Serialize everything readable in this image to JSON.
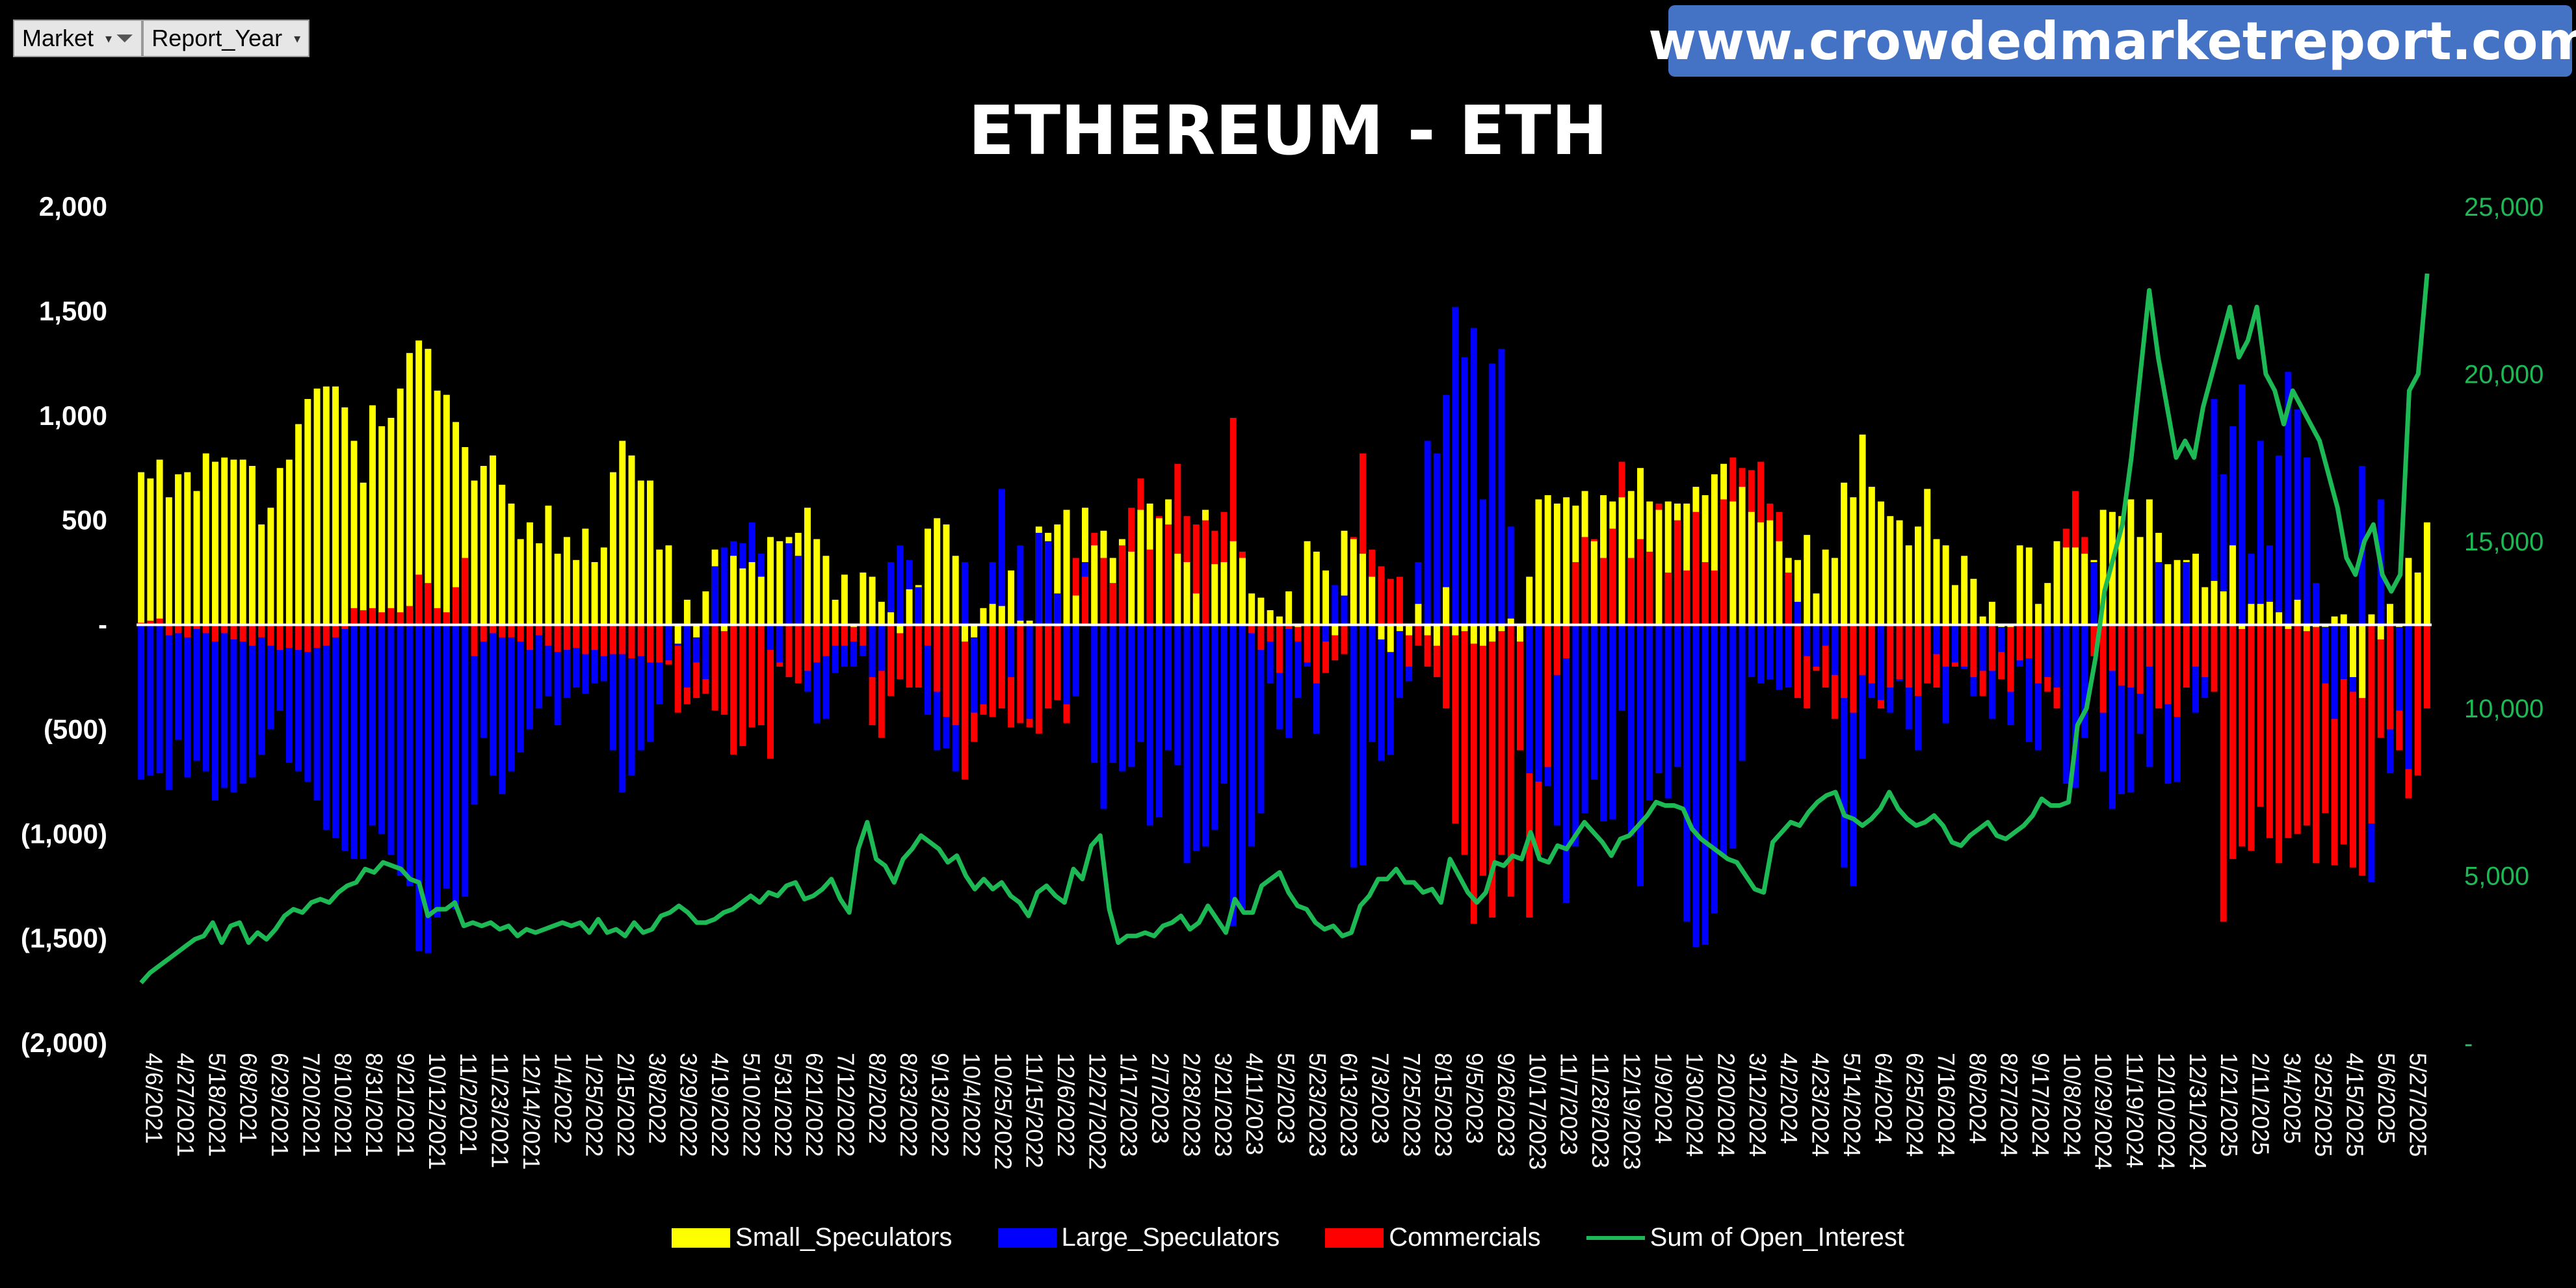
{
  "filters": [
    {
      "label": "Market",
      "icon": "funnel-icon"
    },
    {
      "label": "Report_Year"
    }
  ],
  "banner": "www.crowdedmarketreport.com",
  "colors": {
    "small": "#ffff00",
    "large": "#0000ff",
    "comm": "#ff0000",
    "oi": "#1db954"
  },
  "chart_data": {
    "type": "bar",
    "title": "ETHEREUM - ETH",
    "y_left_ticks": [
      "2,000",
      "1,500",
      "1,000",
      "500",
      "-",
      "(500)",
      "(1,000)",
      "(1,500)",
      "(2,000)"
    ],
    "ylim_left": [
      -2000,
      2000
    ],
    "y_right_ticks": [
      "25,000",
      "20,000",
      "15,000",
      "10,000",
      "5,000",
      "-"
    ],
    "ylim_right": [
      0,
      25000
    ],
    "x_tick_labels": [
      "4/6/2021",
      "4/27/2021",
      "5/18/2021",
      "6/8/2021",
      "6/29/2021",
      "7/20/2021",
      "8/10/2021",
      "8/31/2021",
      "9/21/2021",
      "10/12/2021",
      "11/2/2021",
      "11/23/2021",
      "12/14/2021",
      "1/4/2022",
      "1/25/2022",
      "2/15/2022",
      "3/8/2022",
      "3/29/2022",
      "4/19/2022",
      "5/10/2022",
      "5/31/2022",
      "6/21/2022",
      "7/12/2022",
      "8/2/2022",
      "8/23/2022",
      "9/13/2022",
      "10/4/2022",
      "10/25/2022",
      "11/15/2022",
      "12/6/2022",
      "12/27/2022",
      "1/17/2023",
      "2/7/2023",
      "2/28/2023",
      "3/21/2023",
      "4/11/2023",
      "5/2/2023",
      "5/23/2023",
      "6/13/2023",
      "7/3/2023",
      "7/25/2023",
      "8/15/2023",
      "9/5/2023",
      "9/26/2023",
      "10/17/2023",
      "11/7/2023",
      "11/28/2023",
      "12/19/2023",
      "1/9/2024",
      "1/30/2024",
      "2/20/2024",
      "3/12/2024",
      "4/2/2024",
      "4/23/2024",
      "5/14/2024",
      "6/4/2024",
      "6/25/2024",
      "7/16/2024",
      "8/6/2024",
      "8/27/2024",
      "9/17/2024",
      "10/8/2024",
      "10/29/2024",
      "11/19/2024",
      "12/10/2024",
      "12/31/2024",
      "1/21/2025",
      "2/11/2025",
      "3/4/2025",
      "3/25/2025",
      "4/15/2025",
      "5/6/2025",
      "5/27/2025"
    ],
    "series": [
      {
        "name": "Small_Speculators",
        "values": [
          730,
          700,
          790,
          610,
          720,
          730,
          640,
          820,
          780,
          800,
          790,
          790,
          760,
          480,
          560,
          750,
          790,
          960,
          1080,
          1130,
          1140,
          1140,
          1040,
          880,
          680,
          1050,
          950,
          990,
          1130,
          1300,
          1360,
          1320,
          1120,
          1100,
          970,
          850,
          690,
          760,
          810,
          670,
          580,
          410,
          490,
          390,
          570,
          340,
          420,
          310,
          460,
          300,
          370,
          730,
          880,
          810,
          690,
          690,
          360,
          380,
          -90,
          120,
          -60,
          160,
          360,
          -30,
          330,
          270,
          300,
          230,
          420,
          400,
          420,
          440,
          560,
          410,
          330,
          120,
          240,
          -10,
          250,
          230,
          110,
          60,
          -40,
          170,
          190,
          460,
          510,
          480,
          330,
          -80,
          -60,
          80,
          100,
          90,
          260,
          20,
          20,
          470,
          440,
          480,
          550,
          140,
          560,
          380,
          450,
          320,
          410,
          350,
          550,
          580,
          510,
          600,
          340,
          300,
          150,
          550,
          290,
          300,
          400,
          320,
          150,
          130,
          70,
          40,
          160,
          -10,
          400,
          350,
          260,
          -50,
          450,
          410,
          340,
          230,
          -70,
          -130,
          -30,
          -50,
          100,
          -50,
          -100,
          180,
          -50,
          -30,
          -90,
          -100,
          -80,
          -30,
          30,
          -80,
          230,
          600,
          620,
          580,
          610,
          570,
          640,
          400,
          620,
          590,
          610,
          640,
          750,
          590,
          550,
          590,
          580,
          580,
          660,
          620,
          720,
          770,
          590,
          660,
          540,
          490,
          500,
          400,
          320,
          310,
          430,
          150,
          360,
          320,
          680,
          610,
          910,
          660,
          590,
          520,
          500,
          380,
          470,
          650,
          410,
          380,
          190,
          330,
          220,
          40,
          110,
          -10,
          -10,
          380,
          370,
          100,
          200,
          400,
          370,
          370,
          340,
          310,
          550,
          540,
          520,
          600,
          420,
          600,
          440,
          290,
          310,
          310,
          340,
          180,
          210,
          160,
          380,
          -20,
          100,
          100,
          110,
          60,
          -20,
          120,
          -30,
          -10,
          -10,
          40,
          50,
          -250,
          -350,
          50,
          -70,
          100,
          -10,
          320,
          250,
          490
        ]
      },
      {
        "name": "Large_Speculators",
        "values": [
          -740,
          -720,
          -710,
          -790,
          -550,
          -730,
          -650,
          -700,
          -840,
          -780,
          -800,
          -760,
          -730,
          -620,
          -500,
          -410,
          -660,
          -700,
          -750,
          -840,
          -980,
          -1020,
          -1080,
          -1120,
          -1120,
          -960,
          -1000,
          -1100,
          -1200,
          -1250,
          -1560,
          -1570,
          -1400,
          -1260,
          -1360,
          -1300,
          -860,
          -540,
          -720,
          -810,
          -700,
          -610,
          -500,
          -400,
          -340,
          -480,
          -350,
          -300,
          -330,
          -280,
          -270,
          -600,
          -800,
          -720,
          -600,
          -560,
          -380,
          -170,
          -100,
          -300,
          -180,
          -260,
          280,
          370,
          400,
          390,
          490,
          340,
          -120,
          -180,
          390,
          330,
          -320,
          -470,
          -450,
          -230,
          -200,
          -200,
          -150,
          -250,
          -220,
          300,
          380,
          310,
          180,
          -430,
          -600,
          -590,
          -700,
          300,
          -420,
          -380,
          300,
          650,
          -250,
          380,
          -450,
          440,
          400,
          150,
          -380,
          -340,
          300,
          -660,
          -880,
          -660,
          -700,
          -680,
          -560,
          -960,
          -920,
          -600,
          -670,
          -1140,
          -1080,
          -1060,
          -980,
          -760,
          -1440,
          -1360,
          -1060,
          -900,
          -280,
          -500,
          -540,
          -350,
          -200,
          -520,
          -80,
          190,
          140,
          -1160,
          -1150,
          -560,
          -650,
          -620,
          -350,
          -270,
          300,
          880,
          820,
          1100,
          1520,
          1280,
          1420,
          600,
          1250,
          1320,
          470,
          -600,
          -710,
          -750,
          -770,
          -960,
          -1330,
          -1060,
          -900,
          -740,
          -940,
          -930,
          -410,
          -1010,
          -1250,
          -840,
          -710,
          -830,
          -680,
          -1420,
          -1540,
          -1530,
          -1380,
          -1100,
          -1070,
          -650,
          -250,
          -280,
          -260,
          -310,
          -300,
          110,
          -150,
          -200,
          -100,
          -240,
          -1160,
          -1250,
          -640,
          -350,
          -360,
          -420,
          -270,
          -500,
          -600,
          -280,
          -140,
          -470,
          -180,
          -210,
          -340,
          -220,
          -450,
          -130,
          -480,
          -200,
          -560,
          -600,
          -250,
          -300,
          -760,
          -780,
          -540,
          300,
          -700,
          -880,
          -810,
          -800,
          -520,
          -680,
          300,
          -760,
          -750,
          300,
          -420,
          -350,
          1080,
          720,
          950,
          1150,
          340,
          880,
          380,
          810,
          1210,
          1030,
          800,
          200,
          -280,
          -450,
          -260,
          -320,
          760,
          -1230,
          600,
          -710,
          -410,
          -690
        ]
      },
      {
        "name": "Commercials",
        "values": [
          10,
          20,
          30,
          -50,
          -40,
          -60,
          -20,
          -40,
          -80,
          -40,
          -70,
          -80,
          -100,
          -60,
          -100,
          -120,
          -110,
          -120,
          -130,
          -110,
          -100,
          -60,
          -20,
          80,
          70,
          80,
          60,
          80,
          60,
          90,
          240,
          200,
          80,
          60,
          180,
          320,
          -150,
          -80,
          -40,
          -60,
          -60,
          -80,
          -120,
          -50,
          -100,
          -130,
          -120,
          -110,
          -140,
          -120,
          -150,
          -140,
          -140,
          -160,
          -150,
          -180,
          -180,
          -190,
          -420,
          -380,
          -350,
          -330,
          -410,
          -430,
          -620,
          -580,
          -490,
          -480,
          -640,
          -200,
          -250,
          -280,
          -220,
          -180,
          -150,
          -100,
          -100,
          -80,
          -100,
          -480,
          -540,
          -340,
          -260,
          -300,
          -300,
          -100,
          -320,
          -440,
          -480,
          -740,
          -560,
          -430,
          -440,
          -400,
          -490,
          -470,
          -490,
          -520,
          -400,
          -360,
          -470,
          320,
          230,
          440,
          320,
          200,
          380,
          560,
          700,
          360,
          520,
          480,
          770,
          520,
          480,
          500,
          450,
          540,
          990,
          350,
          -40,
          -120,
          -80,
          -230,
          -20,
          -80,
          -180,
          -280,
          -230,
          -170,
          -140,
          420,
          820,
          360,
          280,
          220,
          230,
          -200,
          -100,
          -200,
          -250,
          -400,
          -950,
          -1100,
          -1430,
          -1200,
          -1400,
          -1100,
          -1300,
          -600,
          -1400,
          -1100,
          -680,
          -240,
          -160,
          300,
          420,
          410,
          320,
          460,
          780,
          320,
          410,
          350,
          580,
          250,
          500,
          260,
          540,
          300,
          260,
          600,
          800,
          750,
          740,
          780,
          580,
          540,
          250,
          -350,
          -400,
          -220,
          -300,
          -450,
          -350,
          -420,
          -240,
          -280,
          -400,
          -300,
          -260,
          -300,
          -340,
          -280,
          -300,
          -200,
          -200,
          -200,
          -250,
          -340,
          -220,
          -260,
          -320,
          -170,
          -160,
          -280,
          -320,
          -400,
          460,
          640,
          420,
          -150,
          -420,
          -220,
          -290,
          -300,
          -330,
          -200,
          -400,
          -380,
          -440,
          -300,
          -200,
          -250,
          -320,
          -1420,
          -1120,
          -1060,
          -1080,
          -870,
          -1020,
          -1140,
          -1020,
          -1000,
          -960,
          -1140,
          -900,
          -1150,
          -1050,
          -1160,
          -1200,
          -950,
          -540,
          -500,
          -600,
          -830,
          -720,
          -400,
          240
        ]
      },
      {
        "name": "Sum of Open_Interest",
        "values": [
          1800,
          2100,
          2300,
          2500,
          2700,
          2900,
          3100,
          3200,
          3600,
          3000,
          3500,
          3600,
          3000,
          3300,
          3100,
          3400,
          3800,
          4000,
          3900,
          4200,
          4300,
          4200,
          4500,
          4700,
          4800,
          5200,
          5100,
          5400,
          5300,
          5200,
          4900,
          4800,
          3800,
          4000,
          4000,
          4200,
          3500,
          3600,
          3500,
          3600,
          3400,
          3500,
          3200,
          3400,
          3300,
          3400,
          3500,
          3600,
          3500,
          3600,
          3300,
          3700,
          3300,
          3400,
          3200,
          3600,
          3300,
          3400,
          3800,
          3900,
          4100,
          3900,
          3600,
          3600,
          3700,
          3900,
          4000,
          4200,
          4400,
          4200,
          4500,
          4400,
          4700,
          4800,
          4300,
          4400,
          4600,
          4900,
          4300,
          3900,
          5800,
          6600,
          5500,
          5300,
          4800,
          5500,
          5800,
          6200,
          6000,
          5800,
          5400,
          5600,
          5000,
          4600,
          4900,
          4600,
          4800,
          4400,
          4200,
          3800,
          4500,
          4700,
          4400,
          4200,
          5200,
          4900,
          5900,
          6200,
          4000,
          3000,
          3200,
          3200,
          3300,
          3200,
          3500,
          3600,
          3800,
          3400,
          3600,
          4100,
          3700,
          3300,
          4300,
          3900,
          3900,
          4700,
          4900,
          5100,
          4500,
          4100,
          4000,
          3600,
          3400,
          3500,
          3200,
          3300,
          4100,
          4400,
          4900,
          4900,
          5200,
          4800,
          4800,
          4500,
          4600,
          4200,
          5500,
          5000,
          4500,
          4200,
          4500,
          5400,
          5300,
          5600,
          5500,
          6300,
          5500,
          5400,
          5900,
          5800,
          6200,
          6600,
          6300,
          6000,
          5600,
          6100,
          6200,
          6500,
          6800,
          7200,
          7100,
          7100,
          7000,
          6400,
          6100,
          5900,
          5700,
          5500,
          5400,
          5000,
          4600,
          4500,
          6000,
          6300,
          6600,
          6500,
          6900,
          7200,
          7400,
          7500,
          6800,
          6700,
          6500,
          6700,
          7000,
          7500,
          7000,
          6700,
          6500,
          6600,
          6800,
          6500,
          6000,
          5900,
          6200,
          6400,
          6600,
          6200,
          6100,
          6300,
          6500,
          6800,
          7300,
          7100,
          7100,
          7200,
          9500,
          10000,
          11500,
          13500,
          14500,
          15500,
          17500,
          20000,
          22500,
          20500,
          19000,
          17500,
          18000,
          17500,
          19000,
          20000,
          21000,
          22000,
          20500,
          21000,
          22000,
          20000,
          19500,
          18500,
          19500,
          19000,
          18500,
          18000,
          17000,
          16000,
          14500,
          14000,
          15000,
          15500,
          14000,
          13500,
          14000,
          19500,
          20000,
          23000
        ]
      }
    ]
  },
  "legend": [
    {
      "label": "Small_Speculators",
      "color": "#ffff00",
      "kind": "bar"
    },
    {
      "label": "Large_Speculators",
      "color": "#0000ff",
      "kind": "bar"
    },
    {
      "label": "Commercials",
      "color": "#ff0000",
      "kind": "bar"
    },
    {
      "label": "Sum of Open_Interest",
      "color": "#1db954",
      "kind": "line"
    }
  ]
}
